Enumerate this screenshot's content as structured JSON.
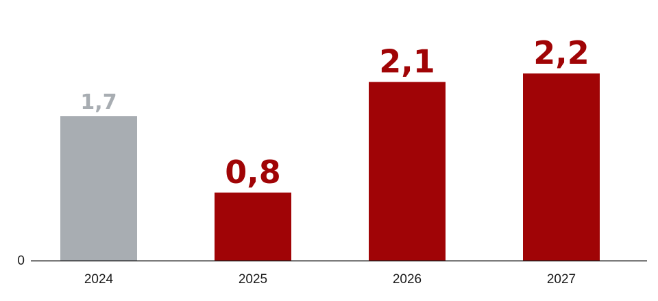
{
  "chart_data": {
    "type": "bar",
    "categories": [
      "2024",
      "2025",
      "2026",
      "2027"
    ],
    "values": [
      1.7,
      0.8,
      2.1,
      2.2
    ],
    "value_labels": [
      "1,7",
      "0,8",
      "2,1",
      "2,2"
    ],
    "highlight": [
      false,
      true,
      true,
      true
    ],
    "colors": {
      "base": "#a8adb2",
      "highlight": "#a00406",
      "axis": "#1a1a1a",
      "text": "#1a1a1a"
    },
    "y_tick_labels": [
      "0"
    ],
    "ylim": [
      0,
      2.2
    ],
    "grid": false,
    "title": "",
    "xlabel": "",
    "ylabel": ""
  }
}
